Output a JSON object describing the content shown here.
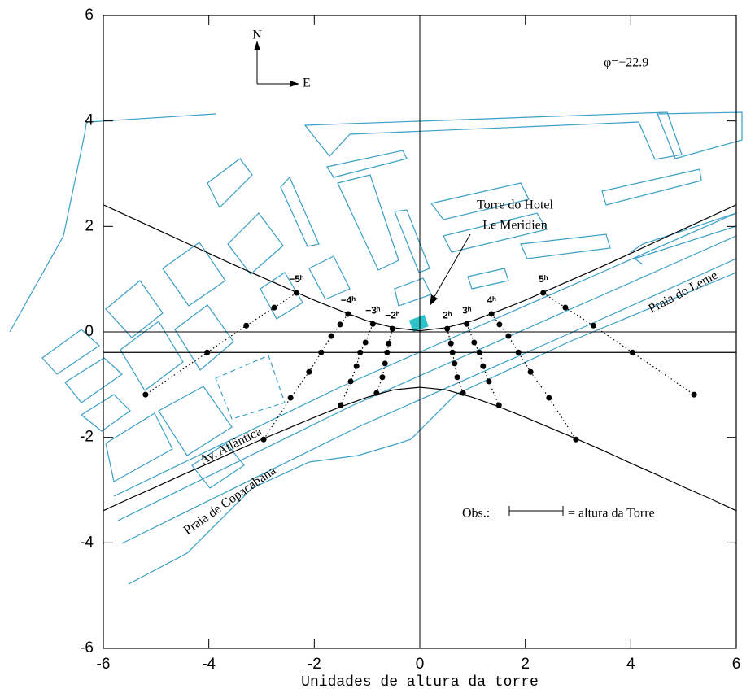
{
  "chart_data": {
    "type": "line",
    "xlabel": "Unidades de altura da torre",
    "xlim": [
      -6,
      6
    ],
    "ylim": [
      -6,
      6
    ],
    "xticks": [
      -6,
      -4,
      -2,
      0,
      2,
      4,
      6
    ],
    "yticks": [
      -6,
      -4,
      -2,
      0,
      2,
      4,
      6
    ],
    "zero_lines": true,
    "map_color": "#3a9fc6",
    "annotations": {
      "north": "N",
      "east": "E",
      "latitude": "φ=−22.9",
      "tower_line1": "Torre do Hotel",
      "tower_line2": "Le Meridien",
      "leme": "Praia do Leme",
      "avenue": "Av. Atlântica",
      "copacabana": "Praia de Copacabana",
      "obs": "Obs.:",
      "scale_note": "= altura da Torre"
    },
    "series": [
      {
        "color": "#000000",
        "style": "solid",
        "markers": false,
        "x": [
          -6,
          -5.5,
          -5,
          -4.5,
          -4,
          -3.5,
          -3,
          -2.5,
          -2,
          -1.5,
          -1,
          -0.5,
          0,
          0.5,
          1,
          1.5,
          2,
          2.5,
          3,
          3.5,
          4,
          4.5,
          5,
          5.5,
          6
        ],
        "values": [
          2.41,
          2.18,
          1.95,
          1.72,
          1.49,
          1.26,
          1.04,
          0.82,
          0.6,
          0.4,
          0.21,
          0.08,
          0.02,
          0.08,
          0.21,
          0.4,
          0.6,
          0.82,
          1.04,
          1.26,
          1.49,
          1.72,
          1.95,
          2.18,
          2.41
        ]
      },
      {
        "color": "#000000",
        "style": "solid",
        "markers": false,
        "x": [
          -6,
          -5.5,
          -5,
          -4.5,
          -4,
          -3.5,
          -3,
          -2.5,
          -2,
          -1.5,
          -1,
          -0.5,
          0,
          0.5,
          1,
          1.5,
          2,
          2.5,
          3,
          3.5,
          4,
          4.5,
          5,
          5.5,
          6
        ],
        "values": [
          -3.39,
          -3.16,
          -2.94,
          -2.71,
          -2.49,
          -2.26,
          -2.04,
          -1.83,
          -1.62,
          -1.42,
          -1.24,
          -1.1,
          -1.05,
          -1.1,
          -1.24,
          -1.42,
          -1.62,
          -1.83,
          -2.04,
          -2.26,
          -2.49,
          -2.71,
          -2.94,
          -3.16,
          -3.39
        ]
      },
      {
        "color": "#000000",
        "style": "solid",
        "markers": false,
        "x": [
          -6,
          6
        ],
        "values": [
          -0.39,
          -0.39
        ]
      },
      {
        "name": "−5ʰ",
        "color": "#000000",
        "style": "dotted",
        "markers": true,
        "x": [
          -2.34,
          -2.76,
          -3.29,
          -4.03,
          -5.2
        ],
        "values": [
          0.74,
          0.46,
          0.12,
          -0.39,
          -1.19
        ]
      },
      {
        "name": "−4ʰ",
        "color": "#000000",
        "style": "dotted",
        "markers": true,
        "x": [
          -1.36,
          -1.51,
          -1.68,
          -1.87,
          -2.1,
          -2.45,
          -2.96
        ],
        "values": [
          0.34,
          0.14,
          -0.08,
          -0.39,
          -0.76,
          -1.25,
          -2.04
        ]
      },
      {
        "name": "−3ʰ",
        "color": "#000000",
        "style": "dotted",
        "markers": true,
        "x": [
          -0.89,
          -1.03,
          -1.13,
          -1.2,
          -1.31,
          -1.5
        ],
        "values": [
          0.15,
          -0.2,
          -0.39,
          -0.65,
          -0.94,
          -1.39
        ]
      },
      {
        "name": "−2ʰ",
        "color": "#000000",
        "style": "dotted",
        "markers": true,
        "x": [
          -0.52,
          -0.59,
          -0.62,
          -0.66,
          -0.71,
          -0.82
        ],
        "values": [
          0.06,
          -0.22,
          -0.39,
          -0.6,
          -0.86,
          -1.16
        ]
      },
      {
        "name": "2ʰ",
        "color": "#000000",
        "style": "dotted",
        "markers": true,
        "x": [
          0.52,
          0.59,
          0.62,
          0.66,
          0.71,
          0.82
        ],
        "values": [
          0.06,
          -0.22,
          -0.39,
          -0.6,
          -0.86,
          -1.16
        ]
      },
      {
        "name": "3ʰ",
        "color": "#000000",
        "style": "dotted",
        "markers": true,
        "x": [
          0.89,
          1.03,
          1.13,
          1.2,
          1.31,
          1.5
        ],
        "values": [
          0.15,
          -0.2,
          -0.39,
          -0.65,
          -0.94,
          -1.39
        ]
      },
      {
        "name": "4ʰ",
        "color": "#000000",
        "style": "dotted",
        "markers": true,
        "x": [
          1.36,
          1.51,
          1.68,
          1.87,
          2.1,
          2.45,
          2.96
        ],
        "values": [
          0.34,
          0.14,
          -0.08,
          -0.39,
          -0.76,
          -1.25,
          -2.04
        ]
      },
      {
        "name": "5ʰ",
        "color": "#000000",
        "style": "dotted",
        "markers": true,
        "x": [
          2.34,
          2.76,
          3.29,
          4.03,
          5.2
        ],
        "values": [
          0.74,
          0.46,
          0.12,
          -0.39,
          -1.19
        ]
      }
    ]
  }
}
